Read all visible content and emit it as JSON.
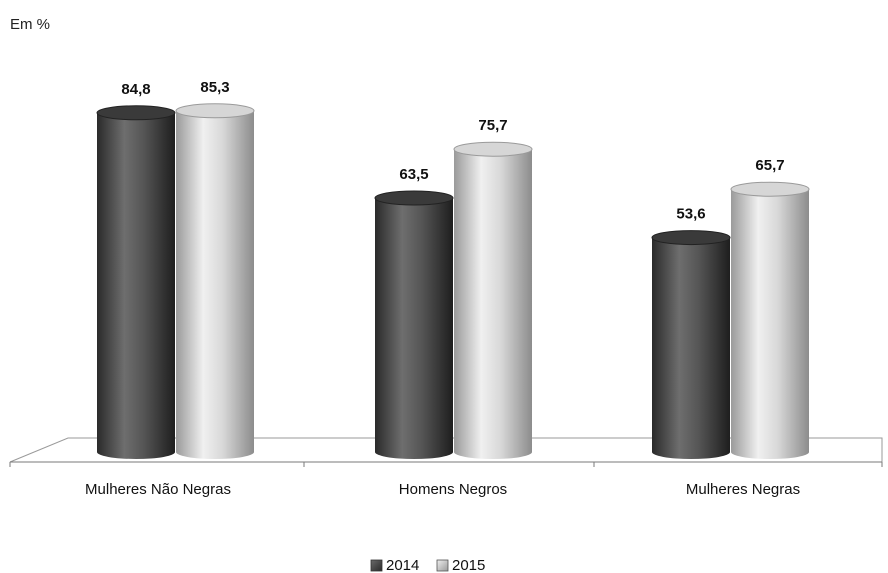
{
  "chart_data": {
    "type": "bar",
    "unit_label": "Em %",
    "categories": [
      "Mulheres Não Negras",
      "Homens Negros",
      "Mulheres Negras"
    ],
    "series": [
      {
        "name": "2014",
        "values": [
          84.8,
          63.5,
          53.6
        ],
        "labels": [
          "84,8",
          "63,5",
          "53,6"
        ],
        "color": "#4a4a4a"
      },
      {
        "name": "2015",
        "values": [
          85.3,
          75.7,
          65.7
        ],
        "labels": [
          "85,3",
          "75,7",
          "65,7"
        ],
        "color": "#c8c8c8"
      }
    ],
    "ylim": [
      0,
      100
    ],
    "grid": false,
    "legend_position": "bottom-center",
    "style": "3d-cylinder"
  }
}
